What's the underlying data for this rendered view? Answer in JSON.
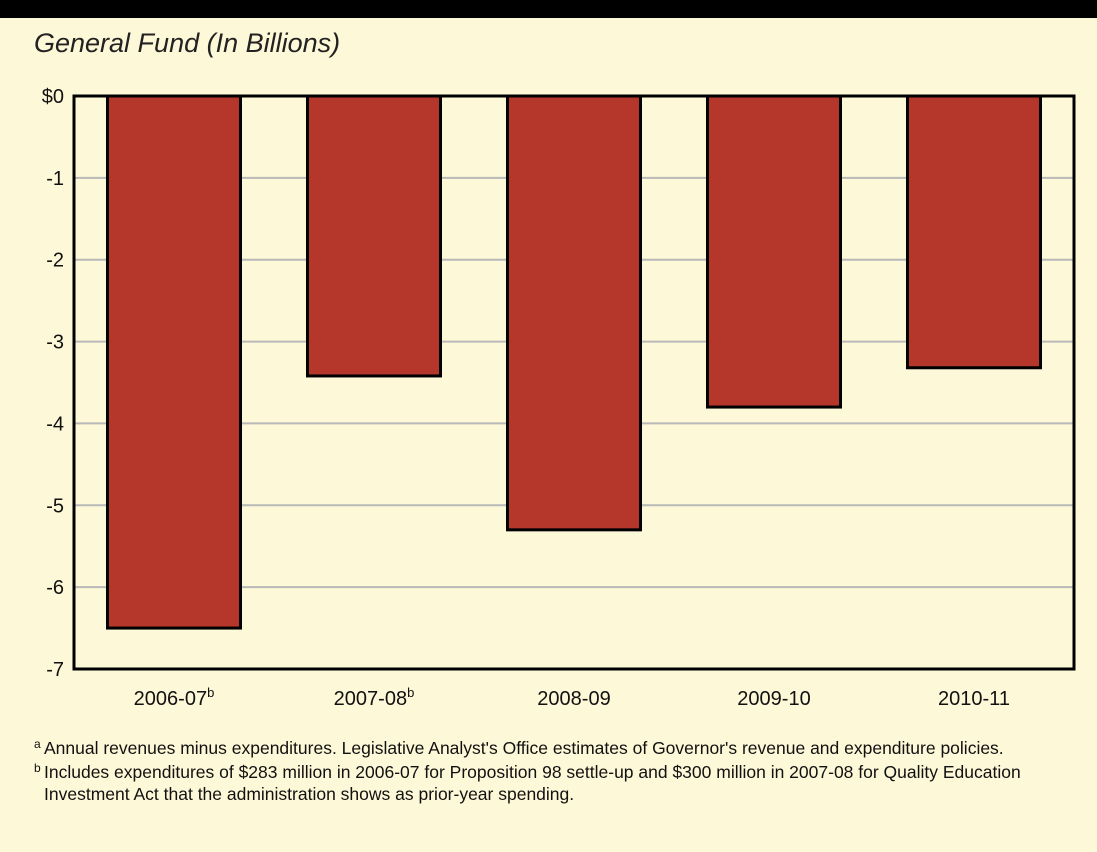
{
  "chart_data": {
    "type": "bar",
    "title": "General Fund (In Billions)",
    "categories": [
      "2006-07",
      "2007-08",
      "2008-09",
      "2009-10",
      "2010-11"
    ],
    "category_superscripts": [
      "b",
      "b",
      "",
      "",
      ""
    ],
    "values": [
      -6.5,
      -3.42,
      -5.3,
      -3.8,
      -3.32
    ],
    "ylim": [
      -7,
      0
    ],
    "yticks": [
      0,
      -1,
      -2,
      -3,
      -4,
      -5,
      -6,
      -7
    ],
    "ytick_labels": [
      "$0",
      "-1",
      "-2",
      "-3",
      "-4",
      "-5",
      "-6",
      "-7"
    ],
    "bar_color": "#b5362a",
    "grid": true
  },
  "footnotes": [
    {
      "mark": "a",
      "text": "Annual revenues minus expenditures. Legislative Analyst's Office estimates of Governor's revenue and expenditure policies."
    },
    {
      "mark": "b",
      "text": "Includes expenditures of $283 million in 2006-07 for Proposition 98 settle-up and $300 million in 2007-08 for Quality Education Investment Act that the administration shows as prior-year spending."
    }
  ]
}
